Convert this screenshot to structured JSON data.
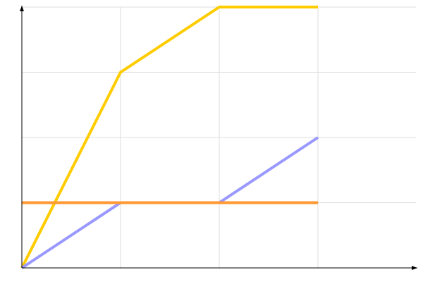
{
  "chart_data": {
    "type": "line",
    "title": "",
    "xlabel": "",
    "ylabel": "",
    "xlim": [
      0,
      3
    ],
    "ylim": [
      0,
      4
    ],
    "grid": true,
    "x": [
      0,
      1,
      2,
      3
    ],
    "series": [
      {
        "values": [
          0,
          3,
          4,
          4
        ],
        "color": "#ffcc00"
      },
      {
        "values": [
          0,
          1,
          1,
          2
        ],
        "color": "#9999ff"
      },
      {
        "values": [
          1,
          1,
          1,
          1
        ],
        "color": "#ff9933"
      }
    ]
  }
}
